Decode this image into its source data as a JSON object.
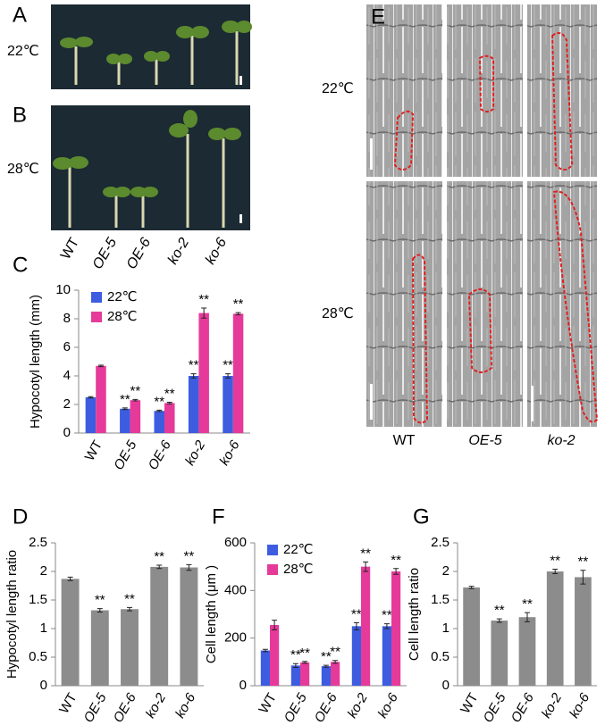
{
  "photos": {
    "letters": [
      "A",
      "B",
      "C",
      "D",
      "E",
      "F",
      "G"
    ],
    "temperatures": [
      "22℃",
      "28℃"
    ],
    "seedling_labels": [
      "WT",
      "OE-5",
      "OE-6",
      "ko-2",
      "ko-6"
    ],
    "cell_labels": [
      "WT",
      "OE-5",
      "ko-2"
    ]
  },
  "chart_data": [
    {
      "type": "bar",
      "ylabel": "Hypocotyl length (mm)",
      "categories": [
        "WT",
        "OE-5",
        "OE-6",
        "ko-2",
        "ko-6"
      ],
      "series": [
        {
          "name": "22℃",
          "color": "#3d5ce0",
          "values": [
            2.5,
            1.7,
            1.55,
            4.0,
            4.0
          ],
          "errors": [
            0.05,
            0.06,
            0.05,
            0.15,
            0.15
          ],
          "significance": [
            null,
            "**",
            "**",
            "**",
            "**"
          ]
        },
        {
          "name": "28℃",
          "color": "#e63a9a",
          "values": [
            4.7,
            2.3,
            2.1,
            8.4,
            8.35
          ],
          "errors": [
            0.05,
            0.05,
            0.06,
            0.35,
            0.08
          ],
          "significance": [
            null,
            "**",
            "**",
            "**",
            "**"
          ]
        }
      ],
      "ylim": [
        0,
        10
      ],
      "yticks": [
        0,
        2,
        4,
        6,
        8,
        10
      ],
      "legend": "top-left"
    },
    {
      "type": "bar",
      "ylabel": "Hypocotyl length ratio",
      "categories": [
        "WT",
        "OE-5",
        "OE-6",
        "ko-2",
        "ko-6"
      ],
      "color": "#8c8c8c",
      "values": [
        1.87,
        1.32,
        1.34,
        2.08,
        2.07
      ],
      "errors": [
        0.03,
        0.03,
        0.03,
        0.03,
        0.05
      ],
      "significance": [
        null,
        "**",
        "**",
        "**",
        "**"
      ],
      "ylim": [
        0,
        2.5
      ],
      "yticks": [
        0,
        0.5,
        1,
        1.5,
        2,
        2.5
      ]
    },
    {
      "type": "bar",
      "ylabel": "Cell length (μm )",
      "categories": [
        "WT",
        "OE-5",
        "OE-6",
        "ko-2",
        "ko-6"
      ],
      "series": [
        {
          "name": "22℃",
          "color": "#3d5ce0",
          "values": [
            148,
            85,
            82,
            250,
            250
          ],
          "errors": [
            5,
            8,
            4,
            15,
            10
          ],
          "significance": [
            null,
            "**",
            "**",
            "**",
            "**"
          ]
        },
        {
          "name": "28℃",
          "color": "#e63a9a",
          "values": [
            255,
            98,
            100,
            500,
            480
          ],
          "errors": [
            20,
            4,
            6,
            20,
            12
          ],
          "significance": [
            null,
            "**",
            "**",
            "**",
            "**"
          ]
        }
      ],
      "ylim": [
        0,
        600
      ],
      "yticks": [
        0,
        200,
        400,
        600
      ],
      "legend": "top-left"
    },
    {
      "type": "bar",
      "ylabel": "Cell length ratio",
      "categories": [
        "WT",
        "OE-5",
        "OE-6",
        "ko-2",
        "ko-6"
      ],
      "color": "#8c8c8c",
      "values": [
        1.72,
        1.14,
        1.2,
        2.0,
        1.9
      ],
      "errors": [
        0.02,
        0.03,
        0.08,
        0.04,
        0.12
      ],
      "significance": [
        null,
        "**",
        "**",
        "**",
        "**"
      ],
      "ylim": [
        0,
        2.5
      ],
      "yticks": [
        0,
        0.5,
        1,
        1.5,
        2,
        2.5
      ]
    }
  ]
}
